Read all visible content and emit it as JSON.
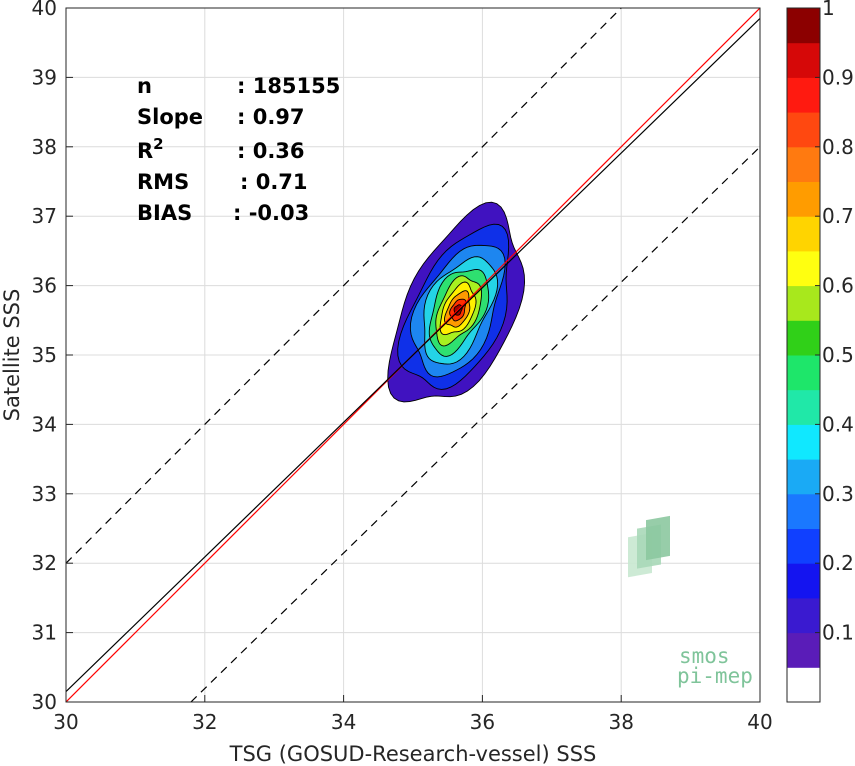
{
  "chart_data": {
    "type": "heatmap",
    "title": "",
    "xlabel": "TSG (GOSUD-Research-vessel) SSS",
    "ylabel": "Satellite SSS",
    "xlim": [
      30,
      40
    ],
    "ylim": [
      30,
      40
    ],
    "xticks": [
      "30",
      "32",
      "34",
      "36",
      "38",
      "40"
    ],
    "yticks": [
      "30",
      "31",
      "32",
      "33",
      "34",
      "35",
      "36",
      "37",
      "38",
      "39",
      "40"
    ],
    "grid": true,
    "stats": [
      {
        "label": "n",
        "value": ": 185155"
      },
      {
        "label": "Slope",
        "value": ": 0.97"
      },
      {
        "label": "R",
        "sup": "2",
        "value": ": 0.36"
      },
      {
        "label": "RMS",
        "value": ": 0.71"
      },
      {
        "label": "BIAS",
        "value": ": -0.03"
      }
    ],
    "reference_lines": [
      {
        "name": "identity",
        "color": "#ff0000",
        "points": [
          [
            30,
            30
          ],
          [
            40,
            40
          ]
        ]
      },
      {
        "name": "fit",
        "color": "#000000",
        "points": [
          [
            30,
            30.15
          ],
          [
            40,
            39.85
          ]
        ]
      },
      {
        "name": "upper bound",
        "color": "#000000",
        "dash": true,
        "points": [
          [
            30,
            32
          ],
          [
            38,
            40
          ]
        ]
      },
      {
        "name": "lower bound",
        "color": "#000000",
        "dash": true,
        "points": [
          [
            31.8,
            30
          ],
          [
            40,
            38
          ]
        ]
      }
    ],
    "density_contours": {
      "center": [
        35.65,
        35.65
      ],
      "levels": [
        {
          "level": 0.05,
          "color": "#4012c0",
          "rx": 1.55,
          "ry": 0.88
        },
        {
          "level": 0.15,
          "color": "#0f30e8",
          "rx": 1.28,
          "ry": 0.72
        },
        {
          "level": 0.25,
          "color": "#1d86f0",
          "rx": 1.05,
          "ry": 0.6
        },
        {
          "level": 0.35,
          "color": "#24d4e6",
          "rx": 0.85,
          "ry": 0.49
        },
        {
          "level": 0.45,
          "color": "#2ee070",
          "rx": 0.68,
          "ry": 0.4
        },
        {
          "level": 0.55,
          "color": "#a8f020",
          "rx": 0.53,
          "ry": 0.31
        },
        {
          "level": 0.65,
          "color": "#fff000",
          "rx": 0.4,
          "ry": 0.24
        },
        {
          "level": 0.75,
          "color": "#ff9a00",
          "rx": 0.28,
          "ry": 0.17
        },
        {
          "level": 0.85,
          "color": "#ff3000",
          "rx": 0.17,
          "ry": 0.11
        },
        {
          "level": 0.95,
          "color": "#a00000",
          "rx": 0.08,
          "ry": 0.06
        }
      ]
    },
    "colorbar": {
      "range": [
        0,
        1
      ],
      "ticks": [
        "0.1",
        "0.2",
        "0.3",
        "0.4",
        "0.5",
        "0.6",
        "0.7",
        "0.8",
        "0.9",
        "1"
      ],
      "colors": [
        "#ffffff",
        "#5a1cb8",
        "#3a1ad0",
        "#1414f0",
        "#1040ff",
        "#1a78ff",
        "#1aaaf5",
        "#10e8ff",
        "#20e8a8",
        "#1ee66a",
        "#30d018",
        "#a8e81c",
        "#ffff10",
        "#ffd400",
        "#ff9c00",
        "#ff7a10",
        "#ff4810",
        "#ff1a10",
        "#d60808",
        "#8c0000"
      ]
    },
    "watermark": {
      "line1": "smos",
      "line2": "pi-mep"
    }
  }
}
